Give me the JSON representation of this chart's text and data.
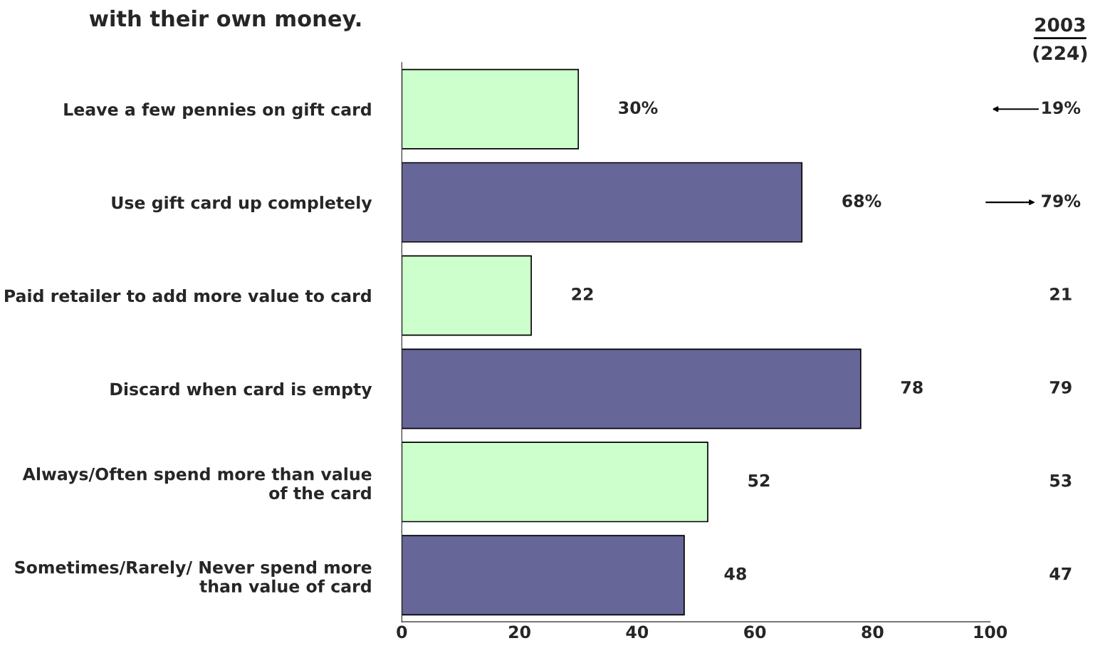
{
  "chart_data": {
    "type": "bar",
    "orientation": "horizontal",
    "title": "with their own money.",
    "categories": [
      "Leave a few pennies on gift card",
      "Use gift card up completely",
      "Paid retailer to add more value to card",
      "Discard when card is empty",
      "Always/Often spend more than value of the card",
      "Sometimes/Rarely/ Never spend more than value of card"
    ],
    "values": [
      30,
      68,
      22,
      78,
      52,
      48
    ],
    "colors": [
      "#ccffcc",
      "#666699",
      "#ccffcc",
      "#666699",
      "#ccffcc",
      "#666699"
    ],
    "value_labels": [
      "30%",
      "68%",
      "22",
      "78",
      "52",
      "48"
    ],
    "xlim": [
      0,
      100
    ],
    "xticks": [
      0,
      20,
      40,
      60,
      80,
      100
    ],
    "grid": false,
    "legend": false,
    "annotations": [
      "2003",
      "(224)",
      "19%",
      "79%",
      "21",
      "79",
      "53",
      "47"
    ]
  }
}
